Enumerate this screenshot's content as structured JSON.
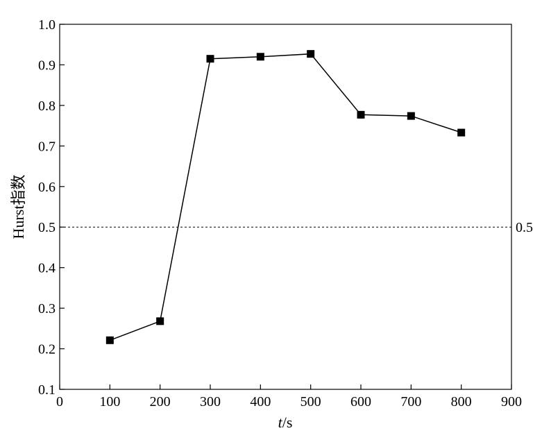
{
  "chart_data": {
    "type": "line",
    "xlabel_italic": "t",
    "xlabel_rest": "/s",
    "ylabel": "Hurst指数",
    "xlim": [
      0,
      900
    ],
    "ylim": [
      0.1,
      1.0
    ],
    "xticks": [
      0,
      100,
      200,
      300,
      400,
      500,
      600,
      700,
      800,
      900
    ],
    "yticks": [
      0.1,
      0.2,
      0.3,
      0.4,
      0.5,
      0.6,
      0.7,
      0.8,
      0.9,
      1.0
    ],
    "xtick_labels": [
      "0",
      "100",
      "200",
      "300",
      "400",
      "500",
      "600",
      "700",
      "800",
      "900"
    ],
    "ytick_labels": [
      "0.1",
      "0.2",
      "0.3",
      "0.4",
      "0.5",
      "0.6",
      "0.7",
      "0.8",
      "0.9",
      "1.0"
    ],
    "series": [
      {
        "x": [
          100,
          200,
          300,
          400,
          500,
          600,
          700,
          800
        ],
        "y": [
          0.221,
          0.268,
          0.915,
          0.92,
          0.927,
          0.777,
          0.774,
          0.733
        ],
        "marker": "square",
        "color": "#000000"
      }
    ],
    "reference_line": {
      "y": 0.5,
      "label": "0.5",
      "style": "dashed"
    },
    "grid": false,
    "legend": "none"
  }
}
